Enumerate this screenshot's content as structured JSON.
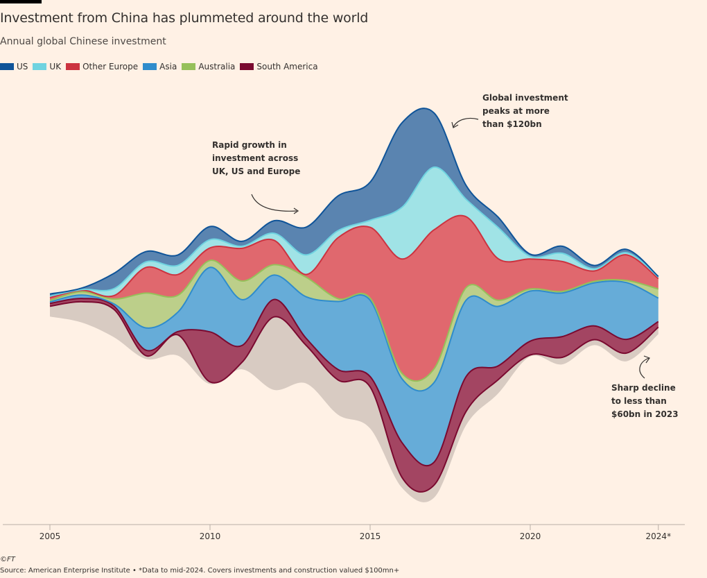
{
  "title": "Investment from China has plummeted around the world",
  "subtitle": "Annual global Chinese investment",
  "chart_data": {
    "type": "area",
    "subtype": "streamgraph",
    "unit": "$bn (approx.)",
    "x": [
      2005,
      2006,
      2007,
      2008,
      2009,
      2010,
      2011,
      2012,
      2013,
      2014,
      2015,
      2016,
      2017,
      2018,
      2019,
      2020,
      2021,
      2022,
      2023,
      2024
    ],
    "xticks": [
      "2005",
      "2010",
      "2015",
      "2020",
      "2024*"
    ],
    "tick_years": [
      2005,
      2010,
      2015,
      2020,
      2024
    ],
    "series": [
      {
        "name": "US",
        "color": "#0f5499",
        "fill": "#5a84b0",
        "values": [
          0.7,
          0.5,
          5.0,
          3.4,
          3.4,
          4.3,
          1.6,
          4.1,
          9.1,
          11.4,
          12.5,
          27.7,
          17.7,
          4.5,
          3.4,
          0.7,
          2.3,
          1.1,
          1.1,
          0.2
        ]
      },
      {
        "name": "UK",
        "color": "#6fd3e0",
        "fill": "#a0e3e6",
        "values": [
          0.5,
          0.2,
          2.3,
          1.8,
          3.0,
          2.7,
          0.7,
          2.3,
          6.4,
          2.3,
          2.3,
          17.0,
          20.5,
          5.7,
          10.2,
          0.9,
          2.7,
          0.7,
          0.7,
          0.5
        ]
      },
      {
        "name": "Other Europe",
        "color": "#cc3340",
        "fill": "#e0686e",
        "values": [
          0.9,
          0.5,
          1.1,
          8.4,
          6.8,
          4.1,
          10.7,
          8.0,
          0.9,
          20.0,
          23.2,
          37.5,
          45.5,
          23.2,
          13.6,
          9.8,
          9.8,
          3.4,
          8.4,
          3.4
        ]
      },
      {
        "name": "Australia",
        "color": "#96c05a",
        "fill": "#bccf8a",
        "values": [
          0.5,
          1.1,
          1.6,
          11.4,
          5.5,
          2.3,
          6.1,
          3.4,
          6.4,
          0.9,
          0.7,
          1.8,
          4.5,
          4.1,
          2.0,
          0.7,
          0.5,
          0.5,
          0.7,
          3.0
        ]
      },
      {
        "name": "Asia",
        "color": "#2f8ccc",
        "fill": "#66acd8",
        "values": [
          0.5,
          1.1,
          0.7,
          7.3,
          6.4,
          21.1,
          15.0,
          8.0,
          13.6,
          22.3,
          25.0,
          20.9,
          26.1,
          25.0,
          19.5,
          16.4,
          14.3,
          14.1,
          18.6,
          7.7
        ]
      },
      {
        "name": "South America",
        "color": "#7a0a30",
        "fill": "#a34562",
        "values": [
          0.9,
          1.1,
          1.1,
          1.8,
          1.1,
          16.4,
          5.5,
          5.7,
          2.3,
          3.4,
          3.4,
          11.4,
          7.5,
          11.4,
          4.5,
          4.5,
          6.8,
          4.5,
          4.5,
          1.8
        ]
      },
      {
        "name": "",
        "color": "#d8cbc2",
        "fill": "#d8cbc2",
        "values": [
          3.4,
          6.8,
          9.1,
          1.1,
          6.8,
          0.7,
          2.3,
          23.9,
          12.5,
          11.4,
          13.6,
          3.4,
          4.1,
          4.5,
          4.5,
          0.5,
          2.3,
          1.8,
          2.7,
          2.3
        ]
      }
    ],
    "annotations": [
      {
        "text": "Rapid growth in investment across UK, US and Europe",
        "year": 2013
      },
      {
        "text": "Global investment peaks at more than $120bn",
        "year": 2017
      },
      {
        "text": "Sharp decline to less than $60bn in 2023",
        "year": 2024
      }
    ],
    "legend_position": "top-left",
    "grid": false
  },
  "legend": [
    "US",
    "UK",
    "Other Europe",
    "Asia",
    "Australia",
    "South America"
  ],
  "legend_colors": [
    "#0f5499",
    "#6fd3e0",
    "#cc3340",
    "#2f8ccc",
    "#96c05a",
    "#7a0a30"
  ],
  "annotations": {
    "a1": [
      "Rapid growth in",
      "investment across",
      "UK, US and Europe"
    ],
    "a2": [
      "Global investment",
      "peaks at more",
      "than $120bn"
    ],
    "a3": [
      "Sharp decline",
      "to less than",
      "$60bn in 2023"
    ]
  },
  "copyright": "©FT",
  "source": "Source: American Enterprise Institute • *Data to mid-2024. Covers investments and construction valued $100mn+"
}
